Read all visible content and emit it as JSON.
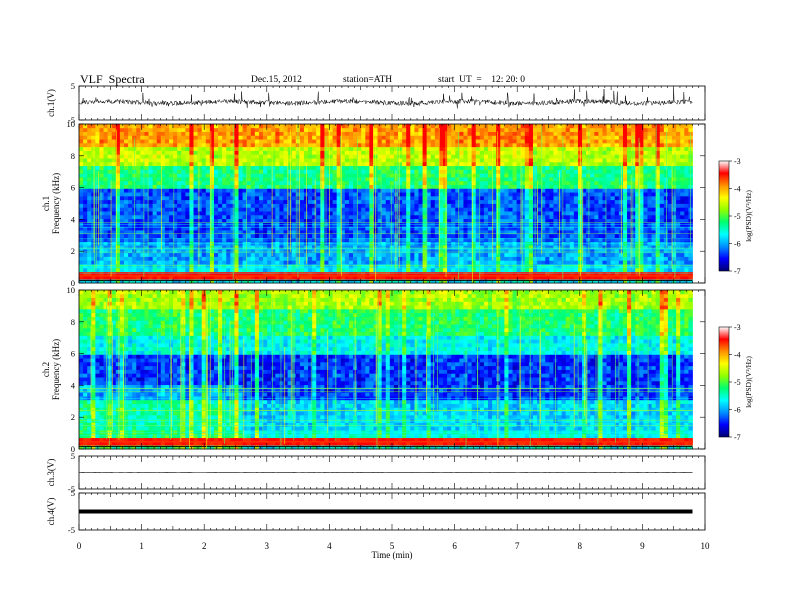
{
  "header": {
    "title": "VLF  Spectra",
    "date": "Dec.15, 2012",
    "station": "station=ATH",
    "start": "start  UT  =    12: 20: 0"
  },
  "chart_data": [
    {
      "type": "line",
      "panel": "ch1-waveform",
      "ylabel": "ch.1(V)",
      "xlim": [
        0,
        10
      ],
      "ylim": [
        -5,
        5
      ],
      "yticks": [
        "5",
        "-5"
      ],
      "x_end": 9.8
    },
    {
      "type": "heatmap",
      "panel": "ch1-spectrogram",
      "ylabel": "ch.1\nFrequency  (kHz)",
      "ylim": [
        0,
        10
      ],
      "yticks": [
        "0",
        "2",
        "4",
        "6",
        "8",
        "10"
      ],
      "colorbar": {
        "label": "log(PSD)(V²/Hz)",
        "ticks": [
          "-3",
          "-4",
          "-5",
          "-6",
          "-7"
        ],
        "range": [
          -7,
          -3
        ]
      }
    },
    {
      "type": "heatmap",
      "panel": "ch2-spectrogram",
      "ylabel": "ch.2\nFrequency  (kHz)",
      "ylim": [
        0,
        10
      ],
      "yticks": [
        "0",
        "2",
        "4",
        "6",
        "8",
        "10"
      ],
      "colorbar": {
        "label": "log(PSD)(V²/Hz)",
        "ticks": [
          "-3",
          "-4",
          "-5",
          "-6",
          "-7"
        ],
        "range": [
          -7,
          -3
        ]
      }
    },
    {
      "type": "line",
      "panel": "ch3-waveform",
      "ylabel": "ch.3(V)",
      "ylim": [
        -5,
        5
      ],
      "yticks": [
        "5",
        "-5"
      ]
    },
    {
      "type": "line",
      "panel": "ch4-waveform",
      "ylabel": "ch.4(V)",
      "ylim": [
        -5,
        5
      ],
      "yticks": [
        "5",
        "-5"
      ]
    }
  ],
  "xaxis": {
    "label": "Time  (min)",
    "ticks": [
      "0",
      "1",
      "2",
      "3",
      "4",
      "5",
      "6",
      "7",
      "8",
      "9",
      "10"
    ]
  },
  "colors": {
    "cmap": [
      "#000070",
      "#0000ff",
      "#0090ff",
      "#00ffff",
      "#00ff70",
      "#90ff00",
      "#ffff00",
      "#ff9000",
      "#ff0000",
      "#ffffff"
    ]
  }
}
